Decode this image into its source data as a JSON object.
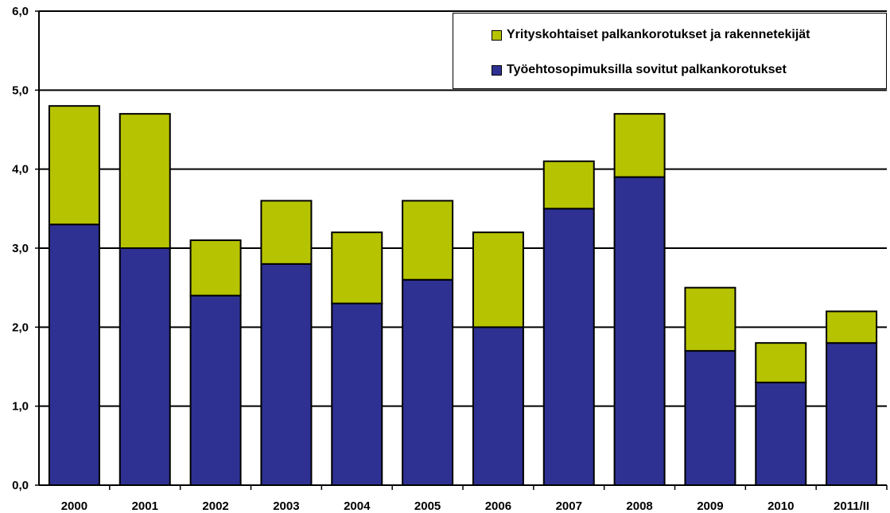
{
  "chart_data": {
    "type": "bar",
    "stacked": true,
    "title": "",
    "xlabel": "",
    "ylabel": "",
    "categories": [
      "2000",
      "2001",
      "2002",
      "2003",
      "2004",
      "2005",
      "2006",
      "2007",
      "2008",
      "2009",
      "2010",
      "2011/II"
    ],
    "series": [
      {
        "name": "Työehtosopimuksilla sovitut palkankorotukset",
        "color": "#2e3192",
        "values": [
          3.3,
          3.0,
          2.4,
          2.8,
          2.3,
          2.6,
          2.0,
          3.5,
          3.9,
          1.7,
          1.3,
          1.8
        ]
      },
      {
        "name": "Yrityskohtaiset palkankorotukset ja rakennetekijät",
        "color": "#b6c300",
        "values": [
          1.5,
          1.7,
          0.7,
          0.8,
          0.9,
          1.0,
          1.2,
          0.6,
          0.8,
          0.8,
          0.5,
          0.4
        ]
      }
    ],
    "ylim": [
      0,
      6
    ],
    "yticks": [
      "0,0",
      "1,0",
      "2,0",
      "3,0",
      "4,0",
      "5,0",
      "6,0"
    ],
    "grid": true,
    "legend_position": "top-right"
  },
  "legend": {
    "items": [
      {
        "label": "Yrityskohtaiset palkankorotukset ja rakennetekijät",
        "color": "#b6c300"
      },
      {
        "label": "Työehtosopimuksilla sovitut palkankorotukset",
        "color": "#2e3192"
      }
    ]
  }
}
